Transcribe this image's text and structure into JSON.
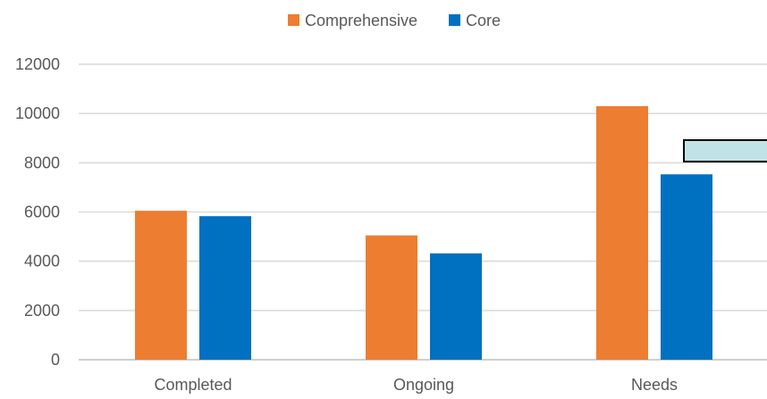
{
  "chart_data": {
    "type": "bar",
    "title": "",
    "xlabel": "",
    "ylabel": "",
    "categories": [
      "Completed",
      "Ongoing",
      "Needs"
    ],
    "series": [
      {
        "name": "Comprehensive",
        "color": "#ED7D31",
        "values": [
          6050,
          5050,
          10300
        ]
      },
      {
        "name": "Core",
        "color": "#0070C0",
        "values": [
          5830,
          4320,
          7530
        ]
      }
    ],
    "ylim": [
      0,
      12000
    ],
    "yticks": [
      0,
      2000,
      4000,
      6000,
      8000,
      10000,
      12000
    ],
    "grid": true,
    "legend": "top-center"
  },
  "colors": {
    "gridline": "#D9D9D9",
    "axis": "#BFBFBF",
    "text": "#595959",
    "callout_fill": "#BFE3E6",
    "callout_border": "#000000"
  }
}
